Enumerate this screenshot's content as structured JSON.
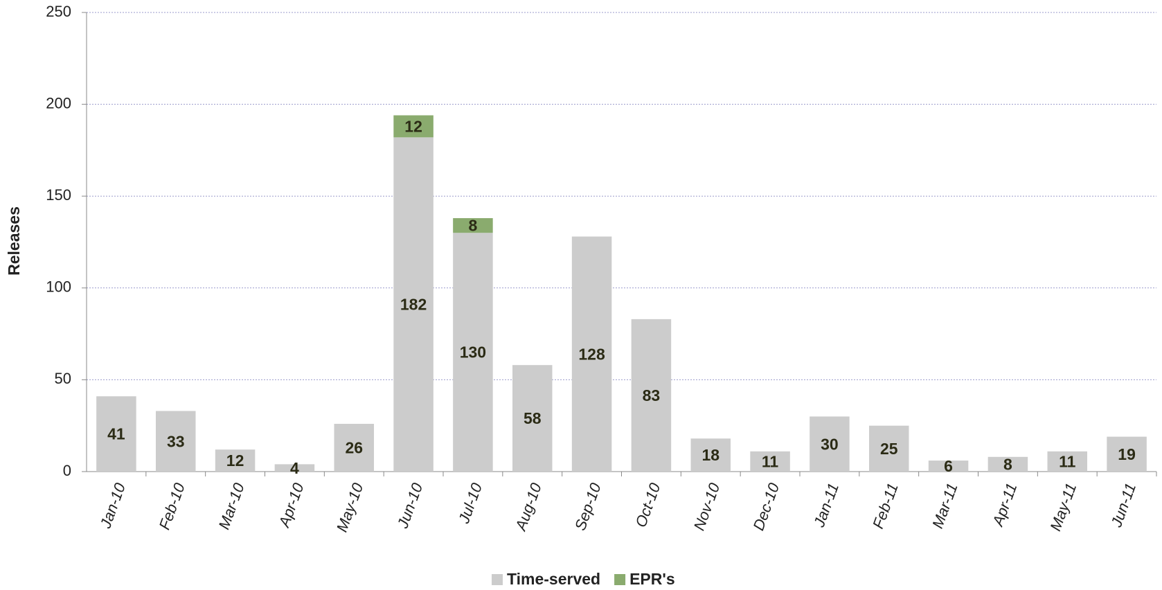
{
  "chart_data": {
    "type": "stacked_bar",
    "y_label": "Releases",
    "categories": [
      "Jan-10",
      "Feb-10",
      "Mar-10",
      "Apr-10",
      "May-10",
      "Jun-10",
      "Jul-10",
      "Aug-10",
      "Sep-10",
      "Oct-10",
      "Nov-10",
      "Dec-10",
      "Jan-11",
      "Feb-11",
      "Mar-11",
      "Apr-11",
      "May-11",
      "Jun-11"
    ],
    "series": [
      {
        "name": "Time-served",
        "color": "#cccccc",
        "values": [
          41,
          33,
          12,
          4,
          26,
          182,
          130,
          58,
          128,
          83,
          18,
          11,
          30,
          25,
          6,
          8,
          11,
          19
        ]
      },
      {
        "name": "EPR's",
        "color": "#8aab6e",
        "values": [
          null,
          null,
          null,
          null,
          null,
          12,
          8,
          null,
          null,
          null,
          null,
          null,
          null,
          null,
          null,
          null,
          null,
          null
        ]
      }
    ],
    "ylim": [
      0,
      250
    ],
    "yticks": [
      0,
      50,
      100,
      150,
      200,
      250
    ],
    "grid": true,
    "legend": "bottom"
  }
}
